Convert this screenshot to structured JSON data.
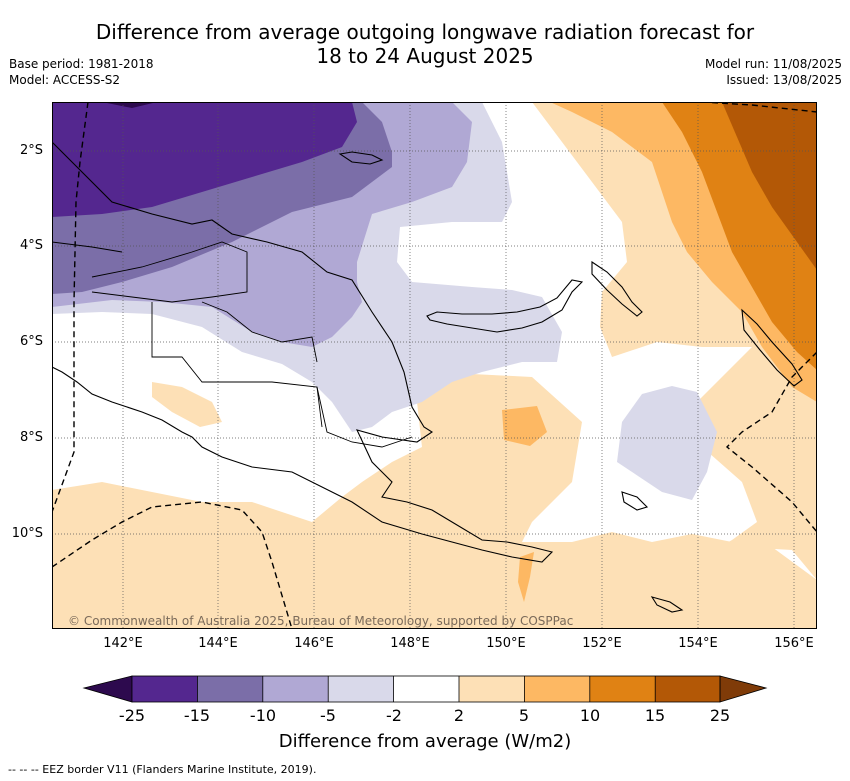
{
  "title": {
    "line1": "Difference from average outgoing longwave radiation forecast for",
    "line2": "18 to 24 August 2025"
  },
  "meta": {
    "base_period": "Base period: 1981-2018",
    "model": "Model: ACCESS-S2",
    "model_run": "Model run: 11/08/2025",
    "issued": "Issued: 13/08/2025"
  },
  "axes": {
    "y_labels": [
      "2°S",
      "4°S",
      "6°S",
      "8°S",
      "10°S"
    ],
    "x_labels": [
      "142°E",
      "144°E",
      "146°E",
      "148°E",
      "150°E",
      "152°E",
      "154°E",
      "156°E"
    ]
  },
  "copyright": "© Commonwealth of Australia 2025, Bureau of Meteorology, supported by COSPPac",
  "colorbar": {
    "title": "Difference from average (W/m2)",
    "labels": [
      "-25",
      "-15",
      "-10",
      "-5",
      "-2",
      "2",
      "5",
      "10",
      "15",
      "25"
    ],
    "colors": {
      "lt_neg25": "#2d0a4e",
      "neg25_neg15": "#54278f",
      "neg15_neg10": "#7b6ea8",
      "neg10_neg5": "#b0a8d4",
      "neg5_neg2": "#d9d9ea",
      "neg2_2": "#ffffff",
      "p2_5": "#fde0b6",
      "p5_10": "#fdb863",
      "p10_15": "#e08214",
      "p15_25": "#b35806",
      "gt_25": "#7f3b08"
    }
  },
  "footnote": "--  --  -- EEZ border V11 (Flanders Marine Institute, 2019)."
}
